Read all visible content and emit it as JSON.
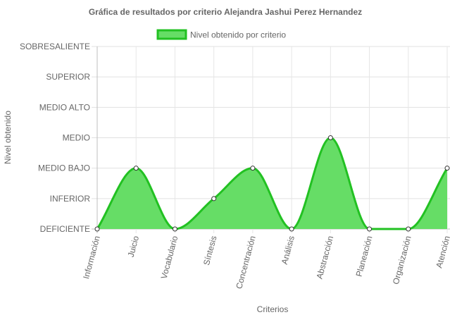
{
  "chart_data": {
    "type": "area",
    "title": "Gráfica de resultados por criterio Alejandra Jashui Perez Hernandez",
    "xlabel": "Criterios",
    "ylabel": "Nivel obtenido",
    "levels": [
      "DEFICIENTE",
      "INFERIOR",
      "MEDIO BAJO",
      "MEDIO",
      "MEDIO ALTO",
      "SUPERIOR",
      "SOBRESALIENTE"
    ],
    "categories": [
      "Información",
      "Juicio",
      "Vocabulario",
      "Síntesis",
      "Concentración",
      "Análisis",
      "Abstracción",
      "Planeación",
      "Organización",
      "Atención"
    ],
    "series": [
      {
        "name": "Nivel obtenido por criterio",
        "values": [
          "DEFICIENTE",
          "MEDIO BAJO",
          "DEFICIENTE",
          "INFERIOR",
          "MEDIO BAJO",
          "DEFICIENTE",
          "MEDIO",
          "DEFICIENTE",
          "DEFICIENTE",
          "MEDIO BAJO"
        ],
        "fill_color": "#66dd66",
        "line_color": "#22c122"
      }
    ],
    "legend_position": "top",
    "grid": true
  }
}
